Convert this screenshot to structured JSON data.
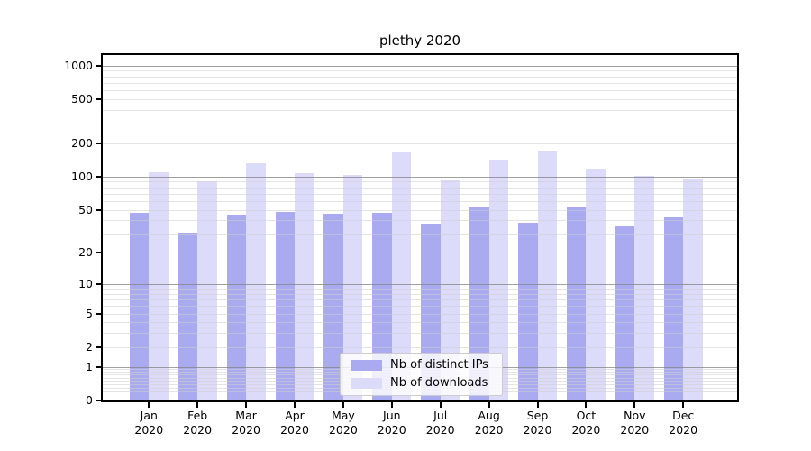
{
  "title": "plethy 2020",
  "chart_data": {
    "type": "bar",
    "title": "plethy 2020",
    "year_label": "2020",
    "months": [
      "Jan",
      "Feb",
      "Mar",
      "Apr",
      "May",
      "Jun",
      "Jul",
      "Aug",
      "Sep",
      "Oct",
      "Nov",
      "Dec"
    ],
    "categories": [
      "Jan 2020",
      "Feb 2020",
      "Mar 2020",
      "Apr 2020",
      "May 2020",
      "Jun 2020",
      "Jul 2020",
      "Aug 2020",
      "Sep 2020",
      "Oct 2020",
      "Nov 2020",
      "Dec 2020"
    ],
    "series": [
      {
        "name": "Nb of distinct IPs",
        "color": "#aaaaf0",
        "values": [
          47,
          31,
          45,
          48,
          46,
          47,
          37,
          54,
          38,
          53,
          36,
          43
        ]
      },
      {
        "name": "Nb of downloads",
        "color": "#dcdcfa",
        "values": [
          110,
          90,
          132,
          108,
          103,
          165,
          92,
          142,
          171,
          119,
          101,
          96
        ]
      }
    ],
    "y_axis": {
      "scale": "log1p",
      "tick_labels": [
        "0",
        "1",
        "2",
        "5",
        "10",
        "20",
        "50",
        "100",
        "200",
        "500",
        "1000"
      ],
      "tick_values": [
        0,
        1,
        2,
        5,
        10,
        20,
        50,
        100,
        200,
        500,
        1000
      ],
      "major_gridline_values": [
        1,
        10,
        100,
        1000
      ],
      "ylim": [
        0,
        1240
      ]
    },
    "xlabel": "",
    "ylabel": "",
    "grid": true,
    "legend_position": "lower center"
  },
  "legend": {
    "items": [
      {
        "label": "Nb of distinct IPs",
        "color": "#aaaaf0"
      },
      {
        "label": "Nb of downloads",
        "color": "#dcdcfa"
      }
    ]
  },
  "colors": {
    "background": "#ffffff",
    "bar_dark": "#aaaaf0",
    "bar_light": "#dcdcfa",
    "major_grid": "#b3b3b3",
    "minor_grid": "#e0e0e0",
    "spine": "#000000",
    "text": "#000000"
  }
}
